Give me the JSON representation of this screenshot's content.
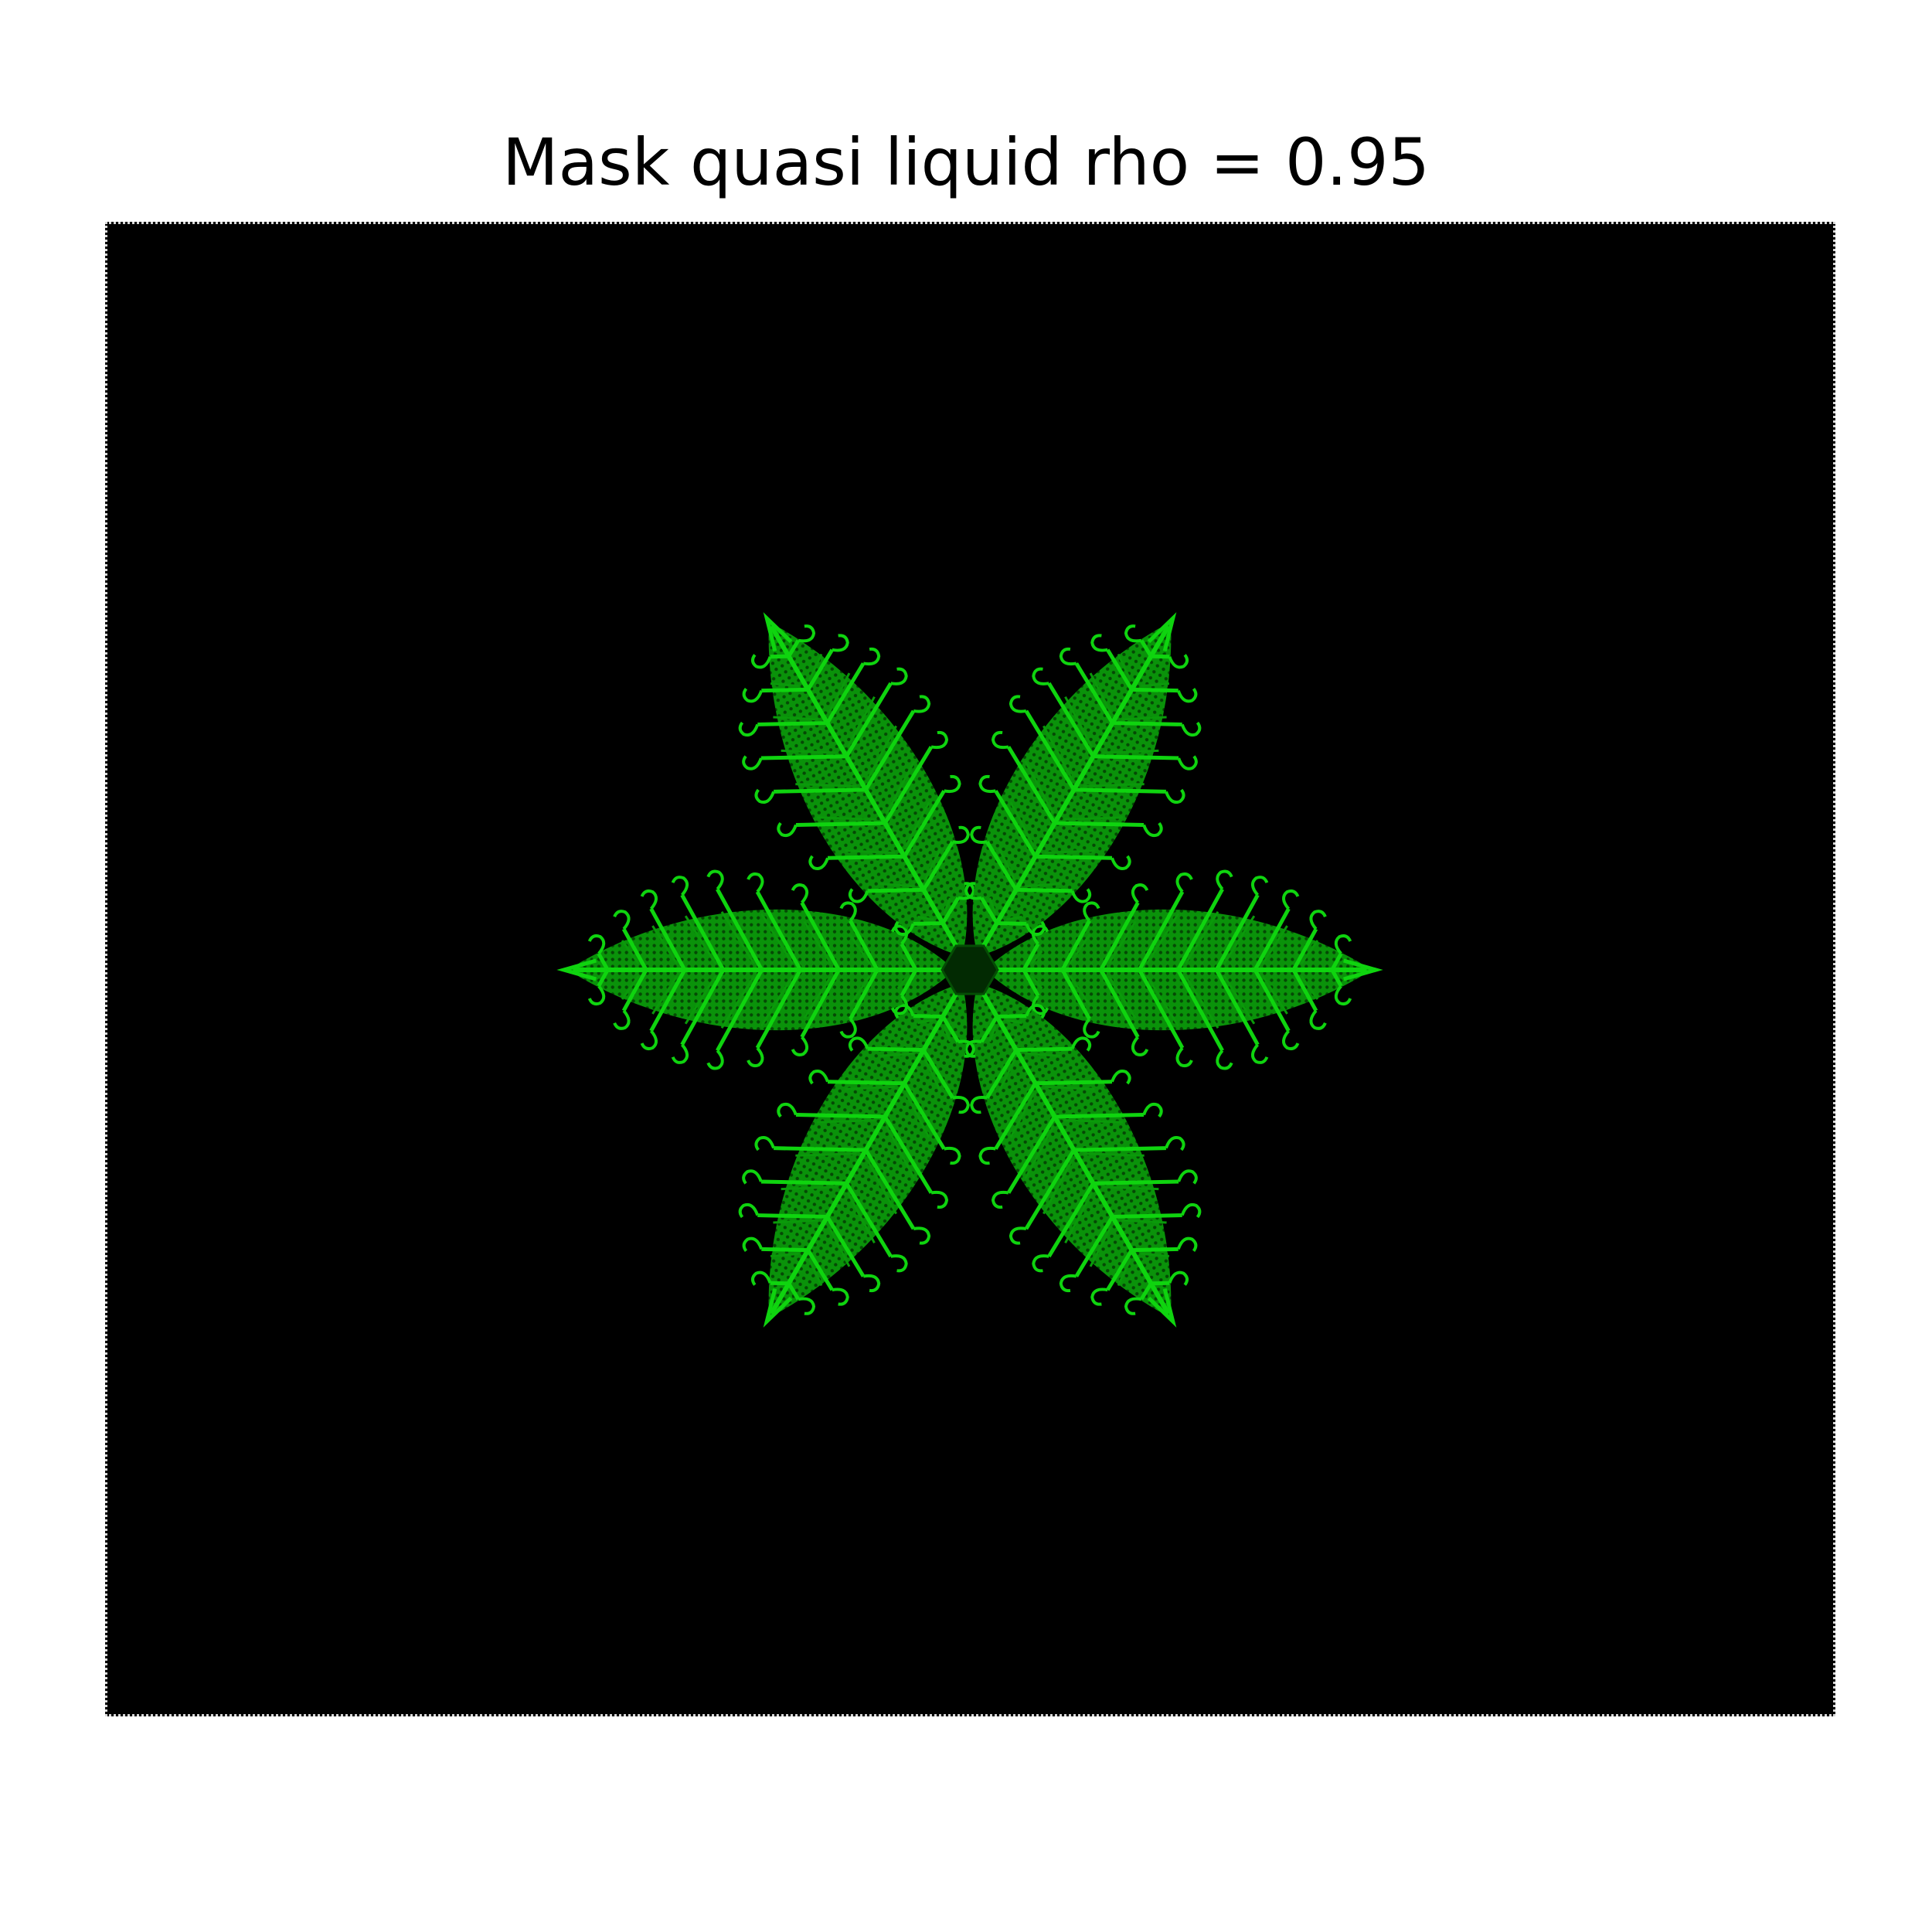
{
  "title": "Mask quasi liquid rho = 0.95",
  "colors": {
    "background": "#000000",
    "crystal_bright": "#0fd40f",
    "crystal_mid": "#0a9a0a",
    "crystal_dark": "#054d05",
    "core": "#022a02",
    "figure_bg": "#ffffff"
  },
  "crystal": {
    "symmetry": 6,
    "arms": 6,
    "description_shape": "hexagonal dendritic snowflake"
  }
}
